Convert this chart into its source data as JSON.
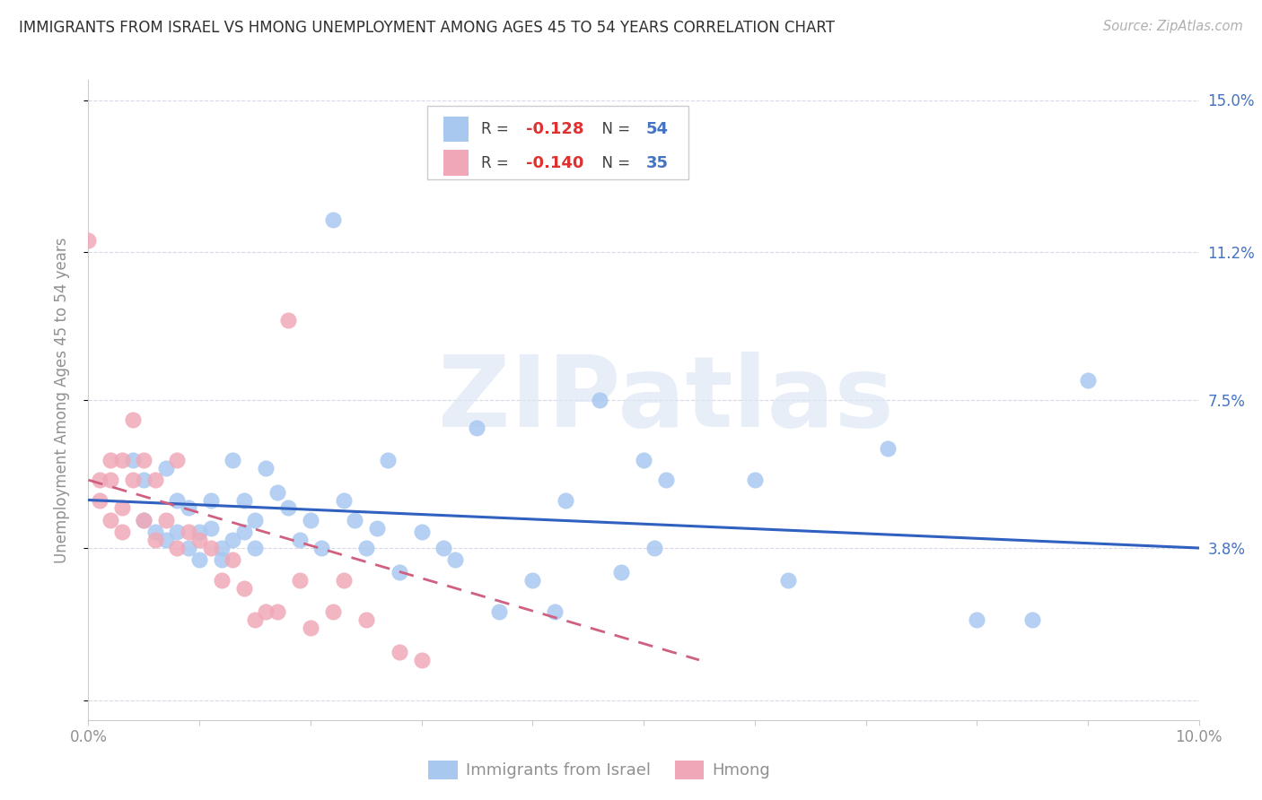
{
  "title": "IMMIGRANTS FROM ISRAEL VS HMONG UNEMPLOYMENT AMONG AGES 45 TO 54 YEARS CORRELATION CHART",
  "source": "Source: ZipAtlas.com",
  "ylabel": "Unemployment Among Ages 45 to 54 years",
  "xlim": [
    0.0,
    0.1
  ],
  "ylim": [
    -0.005,
    0.155
  ],
  "ytick_values": [
    0.0,
    0.038,
    0.075,
    0.112,
    0.15
  ],
  "ytick_labels_right": [
    "",
    "3.8%",
    "7.5%",
    "11.2%",
    "15.0%"
  ],
  "watermark": "ZIPatlas",
  "legend_israel_R": "-0.128",
  "legend_israel_N": "54",
  "legend_hmong_R": "-0.140",
  "legend_hmong_N": "35",
  "israel_color": "#a8c8f0",
  "hmong_color": "#f0a8b8",
  "israel_line_color": "#3060c0",
  "hmong_line_color": "#d06080",
  "background_color": "#ffffff",
  "grid_color": "#d8d8e8",
  "title_color": "#303030",
  "axis_label_color": "#909090",
  "right_ytick_color": "#4472c4",
  "legend_R_color": "#e03030",
  "legend_N_color": "#4472c4",
  "israel_scatter_x": [
    0.004,
    0.005,
    0.005,
    0.006,
    0.007,
    0.007,
    0.008,
    0.008,
    0.009,
    0.009,
    0.01,
    0.01,
    0.011,
    0.011,
    0.012,
    0.012,
    0.013,
    0.013,
    0.014,
    0.014,
    0.015,
    0.015,
    0.016,
    0.017,
    0.018,
    0.019,
    0.02,
    0.021,
    0.022,
    0.023,
    0.024,
    0.025,
    0.026,
    0.027,
    0.028,
    0.03,
    0.032,
    0.033,
    0.035,
    0.037,
    0.04,
    0.042,
    0.043,
    0.046,
    0.05,
    0.051,
    0.052,
    0.06,
    0.063,
    0.072,
    0.08,
    0.085,
    0.09,
    0.048
  ],
  "israel_scatter_y": [
    0.06,
    0.055,
    0.045,
    0.042,
    0.058,
    0.04,
    0.05,
    0.042,
    0.048,
    0.038,
    0.042,
    0.035,
    0.05,
    0.043,
    0.038,
    0.035,
    0.06,
    0.04,
    0.05,
    0.042,
    0.045,
    0.038,
    0.058,
    0.052,
    0.048,
    0.04,
    0.045,
    0.038,
    0.12,
    0.05,
    0.045,
    0.038,
    0.043,
    0.06,
    0.032,
    0.042,
    0.038,
    0.035,
    0.068,
    0.022,
    0.03,
    0.022,
    0.05,
    0.075,
    0.06,
    0.038,
    0.055,
    0.055,
    0.03,
    0.063,
    0.02,
    0.02,
    0.08,
    0.032
  ],
  "hmong_scatter_x": [
    0.0,
    0.001,
    0.001,
    0.002,
    0.002,
    0.002,
    0.003,
    0.003,
    0.003,
    0.004,
    0.004,
    0.005,
    0.005,
    0.006,
    0.006,
    0.007,
    0.008,
    0.008,
    0.009,
    0.01,
    0.011,
    0.012,
    0.013,
    0.014,
    0.015,
    0.016,
    0.017,
    0.018,
    0.019,
    0.02,
    0.022,
    0.023,
    0.025,
    0.028,
    0.03
  ],
  "hmong_scatter_y": [
    0.115,
    0.055,
    0.05,
    0.06,
    0.055,
    0.045,
    0.06,
    0.048,
    0.042,
    0.07,
    0.055,
    0.06,
    0.045,
    0.055,
    0.04,
    0.045,
    0.06,
    0.038,
    0.042,
    0.04,
    0.038,
    0.03,
    0.035,
    0.028,
    0.02,
    0.022,
    0.022,
    0.095,
    0.03,
    0.018,
    0.022,
    0.03,
    0.02,
    0.012,
    0.01
  ],
  "israel_trend_x": [
    0.0,
    0.1
  ],
  "israel_trend_y": [
    0.05,
    0.038
  ],
  "hmong_trend_x": [
    0.0,
    0.055
  ],
  "hmong_trend_y": [
    0.055,
    0.01
  ]
}
